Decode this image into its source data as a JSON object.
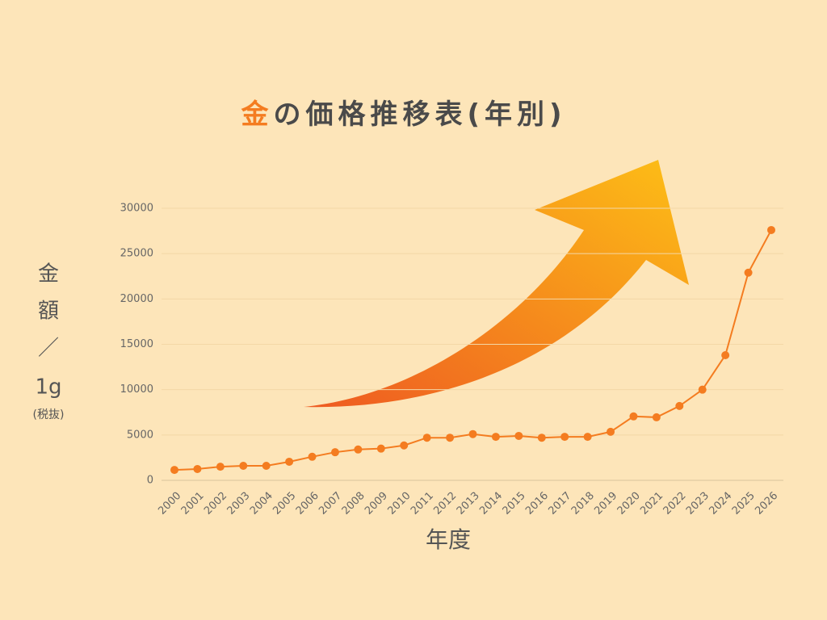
{
  "chart_data": {
    "type": "line",
    "title_highlight": "金",
    "title": "の価格推移表(年別)",
    "y_label_lines": [
      "金",
      "額",
      "／",
      "1g",
      "(税抜)"
    ],
    "x_label": "年度",
    "categories": [
      "2000",
      "2001",
      "2002",
      "2003",
      "2004",
      "2005",
      "2006",
      "2007",
      "2008",
      "2009",
      "2010",
      "2011",
      "2012",
      "2013",
      "2014",
      "2015",
      "2016",
      "2017",
      "2018",
      "2019",
      "2020",
      "2021",
      "2022",
      "2023",
      "2024",
      "2025",
      "2026"
    ],
    "values": [
      1150,
      1250,
      1500,
      1600,
      1600,
      2050,
      2600,
      3100,
      3400,
      3500,
      3850,
      4700,
      4700,
      5100,
      4800,
      4900,
      4700,
      4800,
      4800,
      5350,
      7050,
      6950,
      8200,
      10000,
      13800,
      22900,
      27600
    ],
    "color": "#f47c20",
    "highlight_color": "#f47c20",
    "ylim": [
      0,
      30000
    ],
    "yticks": [
      0,
      5000,
      10000,
      15000,
      20000,
      25000,
      30000
    ],
    "grid": true
  }
}
